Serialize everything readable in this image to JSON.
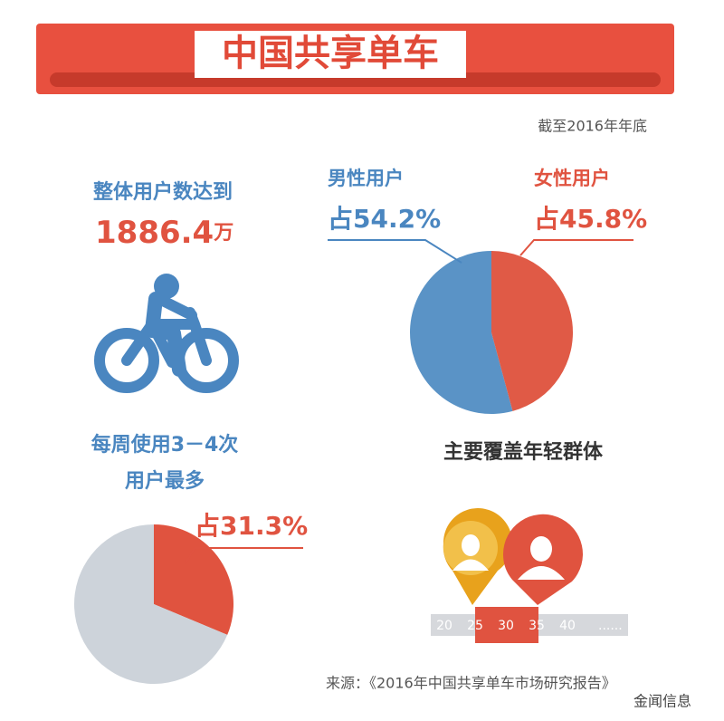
{
  "header": {
    "title": "中国共享单车",
    "date_note": "截至2016年年底"
  },
  "users": {
    "caption": "整体用户数达到",
    "value": "1886.4",
    "unit": "万"
  },
  "chart_data": [
    {
      "type": "pie",
      "categories": [
        "男性用户",
        "女性用户"
      ],
      "values": [
        54.2,
        45.8
      ],
      "value_labels": [
        "占54.2%",
        "占45.8%"
      ],
      "colors": [
        "#5a93c6",
        "#e05a46"
      ]
    },
    {
      "type": "pie",
      "title_lines": [
        "每周使用3－4次",
        "用户最多"
      ],
      "categories": [
        null,
        null
      ],
      "values": [
        31.3,
        68.7
      ],
      "value_labels": [
        "占31.3%",
        null
      ],
      "colors": [
        "#e0533f",
        "#cdd3da"
      ]
    }
  ],
  "age": {
    "title": "主要覆盖年轻群体",
    "ticks": [
      "20",
      "25",
      "30",
      "35",
      "40",
      "......"
    ]
  },
  "source": "来源：《2016年中国共享单车市场研究报告》",
  "watermark": "金闻信息"
}
